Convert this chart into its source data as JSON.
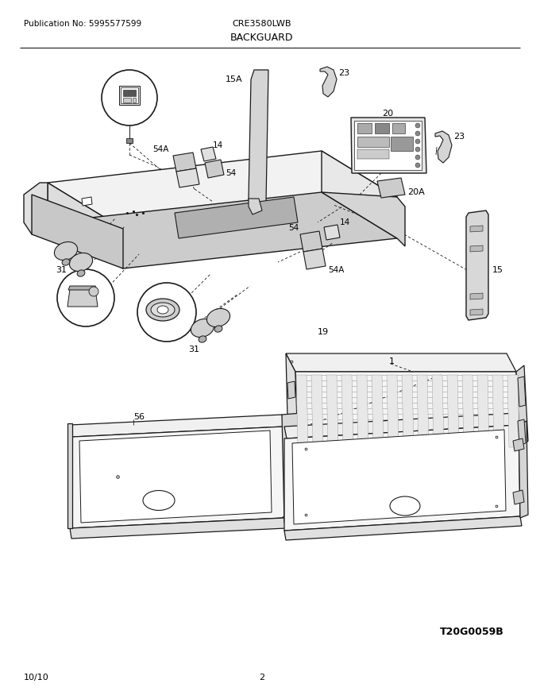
{
  "title": "BACKGUARD",
  "pub_no": "Publication No: 5995577599",
  "model": "CRE3580LWB",
  "date": "10/10",
  "page": "2",
  "diagram_id": "T20G0059B",
  "bg_color": "#ffffff",
  "line_color": "#1a1a1a",
  "gray_fill": "#d8d8d8",
  "light_fill": "#f0f0f0",
  "white_fill": "#ffffff"
}
